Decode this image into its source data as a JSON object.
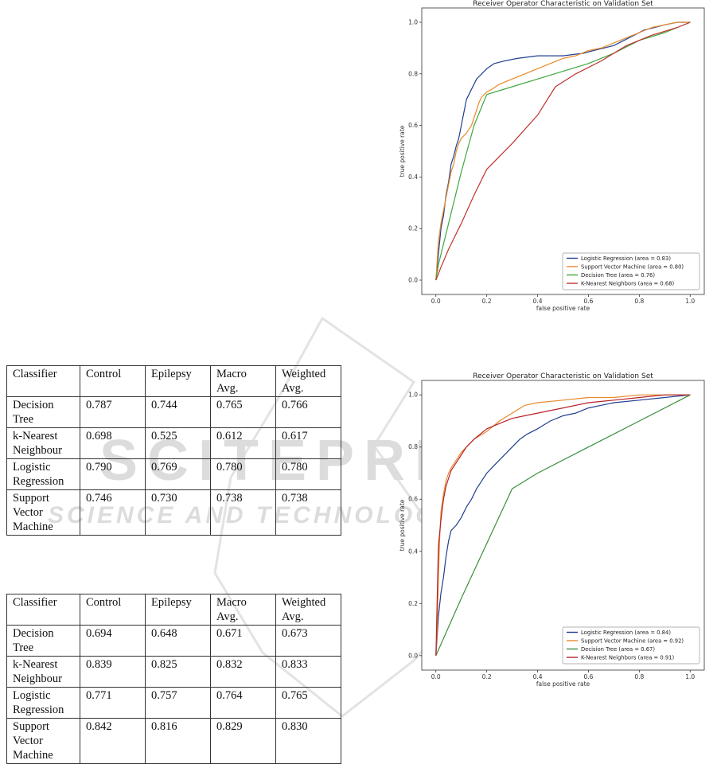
{
  "tables": [
    {
      "header": [
        "Classifier",
        "Control",
        "Epilepsy",
        "Macro Avg.",
        "Weighted Avg."
      ],
      "rows": [
        [
          "Decision Tree",
          "0.787",
          "0.744",
          "0.765",
          "0.766"
        ],
        [
          "k-Nearest Neighbour",
          "0.698",
          "0.525",
          "0.612",
          "0.617"
        ],
        [
          "Logistic Regression",
          "0.790",
          "0.769",
          "0.780",
          "0.780"
        ],
        [
          "Support Vector Machine",
          "0.746",
          "0.730",
          "0.738",
          "0.738"
        ]
      ]
    },
    {
      "header": [
        "Classifier",
        "Control",
        "Epilepsy",
        "Macro Avg.",
        "Weighted Avg."
      ],
      "rows": [
        [
          "Decision Tree",
          "0.694",
          "0.648",
          "0.671",
          "0.673"
        ],
        [
          "k-Nearest Neighbour",
          "0.839",
          "0.825",
          "0.832",
          "0.833"
        ],
        [
          "Logistic Regression",
          "0.771",
          "0.757",
          "0.764",
          "0.765"
        ],
        [
          "Support Vector Machine",
          "0.842",
          "0.816",
          "0.829",
          "0.830"
        ]
      ]
    }
  ],
  "watermark": {
    "line1": "SCITEPRESS",
    "line2": "SCIENCE AND TECHNOLOGY PUBLICATIONS"
  },
  "chart_data": [
    {
      "type": "line",
      "title": "Receiver Operator Characteristic on Validation Set",
      "xlabel": "false positive rate",
      "ylabel": "true positive rate",
      "xlim": [
        0,
        1
      ],
      "ylim": [
        0,
        1
      ],
      "xticks": [
        "0.0",
        "0.2",
        "0.4",
        "0.6",
        "0.8",
        "1.0"
      ],
      "yticks": [
        "0.0",
        "0.2",
        "0.4",
        "0.6",
        "0.8",
        "1.0"
      ],
      "legend_position": "lower-right",
      "series": [
        {
          "name": "Logistic Regression (area = 0.83)",
          "color": "#1f3f8f",
          "x": [
            0,
            0.01,
            0.02,
            0.03,
            0.04,
            0.05,
            0.06,
            0.07,
            0.08,
            0.09,
            0.1,
            0.11,
            0.12,
            0.13,
            0.14,
            0.15,
            0.16,
            0.17,
            0.18,
            0.2,
            0.23,
            0.27,
            0.32,
            0.4,
            0.5,
            0.58,
            0.62,
            0.66,
            0.7,
            0.74,
            0.78,
            0.82,
            0.86,
            0.9,
            0.95,
            1.0
          ],
          "y": [
            0,
            0.1,
            0.2,
            0.25,
            0.33,
            0.38,
            0.45,
            0.48,
            0.52,
            0.55,
            0.6,
            0.65,
            0.7,
            0.72,
            0.74,
            0.76,
            0.78,
            0.79,
            0.8,
            0.82,
            0.84,
            0.85,
            0.86,
            0.87,
            0.87,
            0.88,
            0.89,
            0.9,
            0.91,
            0.93,
            0.95,
            0.97,
            0.98,
            0.99,
            1.0,
            1.0
          ]
        },
        {
          "name": "Support Vector Machine (area = 0.80)",
          "color": "#e8892a",
          "x": [
            0,
            0.01,
            0.02,
            0.03,
            0.04,
            0.05,
            0.06,
            0.07,
            0.08,
            0.09,
            0.1,
            0.12,
            0.14,
            0.15,
            0.16,
            0.17,
            0.18,
            0.19,
            0.2,
            0.22,
            0.25,
            0.3,
            0.35,
            0.4,
            0.45,
            0.5,
            0.55,
            0.6,
            0.65,
            0.7,
            0.75,
            0.8,
            0.85,
            0.9,
            0.95,
            1.0
          ],
          "y": [
            0,
            0.15,
            0.22,
            0.27,
            0.32,
            0.37,
            0.42,
            0.45,
            0.5,
            0.53,
            0.55,
            0.57,
            0.6,
            0.63,
            0.66,
            0.69,
            0.71,
            0.72,
            0.73,
            0.74,
            0.76,
            0.78,
            0.8,
            0.82,
            0.84,
            0.86,
            0.87,
            0.89,
            0.9,
            0.92,
            0.94,
            0.96,
            0.98,
            0.99,
            1.0,
            1.0
          ]
        },
        {
          "name": "Decision Tree (area = 0.76)",
          "color": "#3ea83e",
          "x": [
            0,
            0.01,
            0.05,
            0.1,
            0.15,
            0.2,
            0.3,
            0.4,
            0.5,
            0.6,
            0.7,
            0.8,
            0.9,
            1.0
          ],
          "y": [
            0,
            0.06,
            0.22,
            0.42,
            0.6,
            0.72,
            0.75,
            0.78,
            0.81,
            0.84,
            0.88,
            0.93,
            0.96,
            1.0
          ]
        },
        {
          "name": "K-Nearest Neighbors (area = 0.68)",
          "color": "#c0322e",
          "x": [
            0,
            0.02,
            0.05,
            0.1,
            0.15,
            0.2,
            0.3,
            0.4,
            0.47,
            0.55,
            0.65,
            0.75,
            0.85,
            0.95,
            1.0
          ],
          "y": [
            0,
            0.05,
            0.12,
            0.22,
            0.33,
            0.43,
            0.53,
            0.64,
            0.75,
            0.8,
            0.85,
            0.91,
            0.95,
            0.98,
            1.0
          ]
        }
      ]
    },
    {
      "type": "line",
      "title": "Receiver Operator Characteristic on Validation Set",
      "xlabel": "false positive rate",
      "ylabel": "true positive rate",
      "xlim": [
        0,
        1
      ],
      "ylim": [
        0,
        1
      ],
      "xticks": [
        "0.0",
        "0.2",
        "0.4",
        "0.6",
        "0.8",
        "1.0"
      ],
      "yticks": [
        "0.0",
        "0.2",
        "0.4",
        "0.6",
        "0.8",
        "1.0"
      ],
      "legend_position": "lower-right",
      "series": [
        {
          "name": "Logistic Regression (area = 0.84)",
          "color": "#1f3f8f",
          "x": [
            0,
            0.01,
            0.02,
            0.03,
            0.04,
            0.05,
            0.06,
            0.08,
            0.1,
            0.12,
            0.14,
            0.16,
            0.18,
            0.2,
            0.22,
            0.25,
            0.28,
            0.3,
            0.33,
            0.36,
            0.4,
            0.45,
            0.5,
            0.55,
            0.6,
            0.65,
            0.7,
            0.8,
            0.9,
            1.0
          ],
          "y": [
            0,
            0.15,
            0.24,
            0.3,
            0.38,
            0.44,
            0.48,
            0.5,
            0.53,
            0.57,
            0.6,
            0.64,
            0.67,
            0.7,
            0.72,
            0.75,
            0.78,
            0.8,
            0.83,
            0.85,
            0.87,
            0.9,
            0.92,
            0.93,
            0.95,
            0.96,
            0.97,
            0.98,
            0.99,
            1.0
          ]
        },
        {
          "name": "Support Vector Machine (area = 0.92)",
          "color": "#e8892a",
          "x": [
            0,
            0.005,
            0.01,
            0.015,
            0.02,
            0.03,
            0.04,
            0.05,
            0.06,
            0.08,
            0.1,
            0.12,
            0.15,
            0.2,
            0.25,
            0.3,
            0.35,
            0.4,
            0.5,
            0.6,
            0.7,
            0.8,
            0.9,
            1.0
          ],
          "y": [
            0,
            0.1,
            0.3,
            0.45,
            0.55,
            0.62,
            0.67,
            0.7,
            0.72,
            0.75,
            0.78,
            0.8,
            0.83,
            0.86,
            0.9,
            0.93,
            0.96,
            0.97,
            0.98,
            0.99,
            0.99,
            1.0,
            1.0,
            1.0
          ]
        },
        {
          "name": "Decision Tree (area = 0.67)",
          "color": "#3a8f3a",
          "x": [
            0,
            0.1,
            0.2,
            0.3,
            0.4,
            0.6,
            0.8,
            1.0
          ],
          "y": [
            0,
            0.22,
            0.43,
            0.64,
            0.7,
            0.8,
            0.9,
            1.0
          ]
        },
        {
          "name": "K-Nearest Neighbors (area = 0.91)",
          "color": "#b5232b",
          "x": [
            0,
            0.01,
            0.02,
            0.03,
            0.04,
            0.05,
            0.06,
            0.08,
            0.1,
            0.12,
            0.15,
            0.2,
            0.25,
            0.3,
            0.35,
            0.4,
            0.5,
            0.6,
            0.7,
            0.8,
            0.9,
            1.0
          ],
          "y": [
            0,
            0.42,
            0.52,
            0.6,
            0.65,
            0.68,
            0.71,
            0.74,
            0.77,
            0.8,
            0.83,
            0.87,
            0.89,
            0.91,
            0.92,
            0.93,
            0.95,
            0.97,
            0.98,
            0.99,
            1.0,
            1.0
          ]
        }
      ]
    }
  ]
}
